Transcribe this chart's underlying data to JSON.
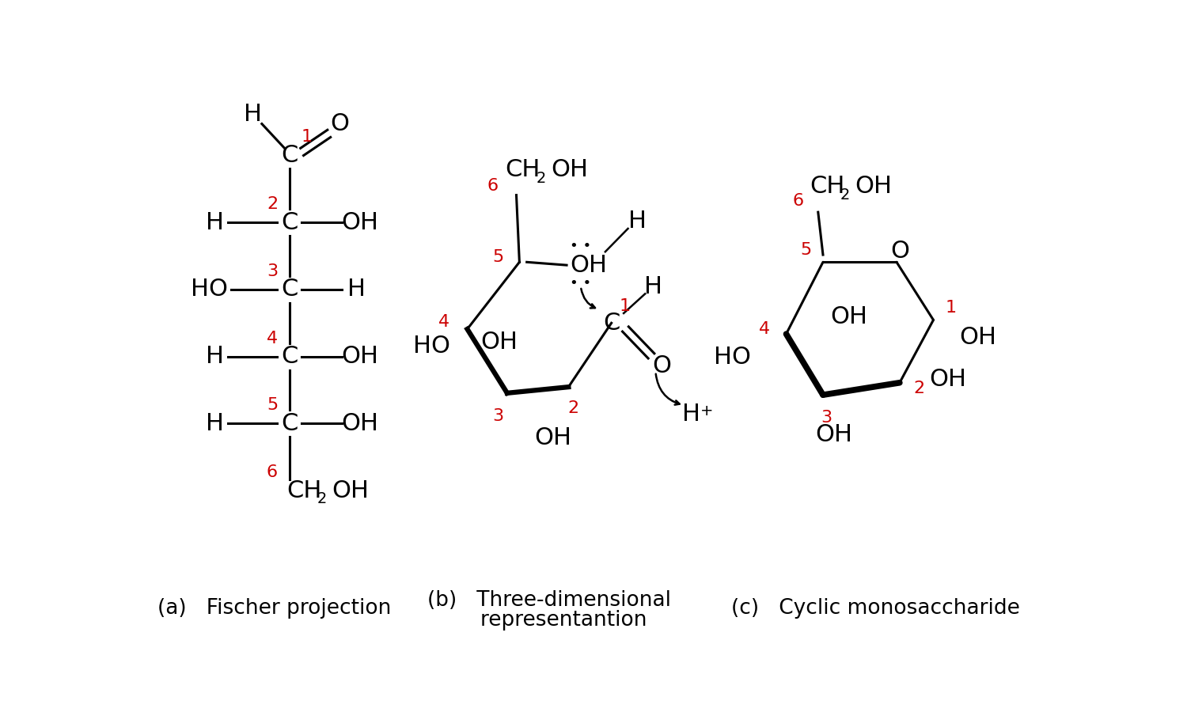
{
  "bg_color": "#ffffff",
  "red_color": "#cc0000",
  "black_color": "#000000",
  "label_a": "(a)   Fischer projection",
  "label_b_1": "(b)   Three-dimensional",
  "label_b_2": "        representantion",
  "label_c": "(c)   Cyclic monosaccharide",
  "font_size_main": 22,
  "font_size_label": 19,
  "font_size_num": 16,
  "font_size_sub": 14
}
